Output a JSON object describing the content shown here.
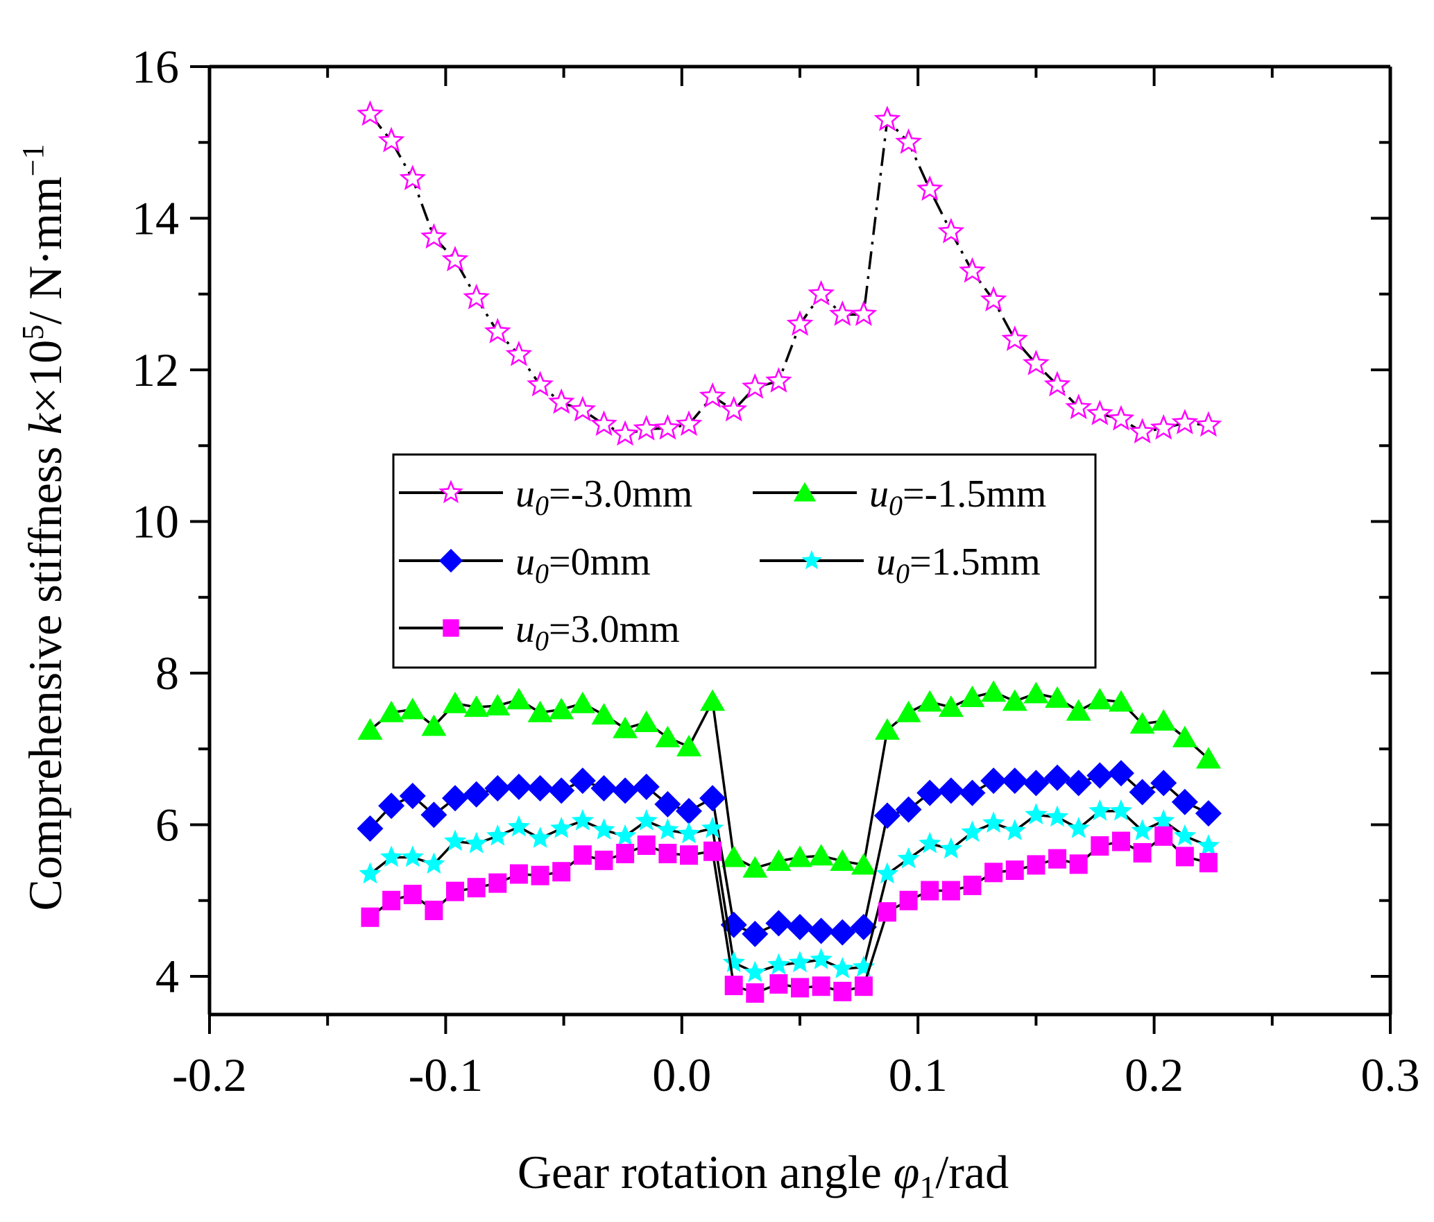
{
  "chart_data": {
    "type": "scatter",
    "title": "",
    "xlabel": "Gear rotation angle φ1/rad",
    "xlabel_parts": {
      "main": "Gear rotation angle ",
      "symbol": "φ",
      "sub": "1",
      "unit": "/rad"
    },
    "ylabel": "Comprehensive stiffness k×10^5/ N·mm^-1",
    "ylabel_parts": {
      "main": "Comprehensive stiffness ",
      "symbol": "k",
      "times": "×10",
      "sup": "5",
      "unit": "/ N·mm",
      "sup2": "−1"
    },
    "xlim": [
      -0.2,
      0.3
    ],
    "ylim": [
      3.5,
      16
    ],
    "xticks": [
      -0.2,
      -0.1,
      0.0,
      0.1,
      0.2,
      0.3
    ],
    "xtick_labels": [
      "-0.2",
      "-0.1",
      "0.0",
      "0.1",
      "0.2",
      "0.3"
    ],
    "yticks": [
      4,
      6,
      8,
      10,
      12,
      14,
      16
    ],
    "ytick_labels": [
      "4",
      "6",
      "8",
      "10",
      "12",
      "14",
      "16"
    ],
    "grid": false,
    "legend_position": "center-left",
    "x": [
      -0.132,
      -0.123,
      -0.114,
      -0.105,
      -0.096,
      -0.087,
      -0.078,
      -0.069,
      -0.06,
      -0.051,
      -0.042,
      -0.033,
      -0.024,
      -0.015,
      -0.006,
      0.003,
      0.013,
      0.022,
      0.031,
      0.041,
      0.05,
      0.059,
      0.068,
      0.077,
      0.087,
      0.096,
      0.105,
      0.114,
      0.123,
      0.132,
      0.141,
      0.15,
      0.159,
      0.168,
      0.177,
      0.186,
      0.195,
      0.204,
      0.213,
      0.223
    ],
    "series": [
      {
        "name": "u0=-3.0mm",
        "label_var": "u",
        "label_sub": "0",
        "label_rest": "=-3.0mm",
        "marker": "star-open",
        "color": "#ff00ff",
        "values": [
          15.37,
          15.02,
          14.52,
          13.75,
          13.45,
          12.95,
          12.5,
          12.2,
          11.8,
          11.57,
          11.47,
          11.28,
          11.15,
          11.22,
          11.23,
          11.28,
          11.65,
          11.47,
          11.77,
          11.85,
          12.6,
          13.0,
          12.73,
          12.73,
          15.3,
          15.0,
          14.38,
          13.82,
          13.3,
          12.92,
          12.4,
          12.08,
          11.8,
          11.5,
          11.42,
          11.35,
          11.18,
          11.23,
          11.3,
          11.27
        ]
      },
      {
        "name": "u0=-1.5mm",
        "label_var": "u",
        "label_sub": "0",
        "label_rest": "=-1.5mm",
        "marker": "triangle",
        "color": "#00ff00",
        "values": [
          7.25,
          7.48,
          7.52,
          7.3,
          7.6,
          7.55,
          7.57,
          7.65,
          7.48,
          7.52,
          7.6,
          7.45,
          7.27,
          7.35,
          7.15,
          7.03,
          7.63,
          5.57,
          5.43,
          5.52,
          5.57,
          5.59,
          5.52,
          5.47,
          7.25,
          7.48,
          7.62,
          7.55,
          7.68,
          7.75,
          7.63,
          7.73,
          7.67,
          7.5,
          7.65,
          7.62,
          7.33,
          7.37,
          7.15,
          6.87
        ]
      },
      {
        "name": "u0=0mm",
        "label_var": "u",
        "label_sub": "0",
        "label_rest": "=0mm",
        "marker": "diamond",
        "color": "#0000ff",
        "values": [
          5.95,
          6.25,
          6.38,
          6.13,
          6.35,
          6.4,
          6.48,
          6.5,
          6.48,
          6.45,
          6.58,
          6.48,
          6.45,
          6.5,
          6.27,
          6.18,
          6.35,
          4.68,
          4.56,
          4.7,
          4.65,
          4.6,
          4.58,
          4.65,
          6.12,
          6.2,
          6.42,
          6.45,
          6.42,
          6.58,
          6.58,
          6.55,
          6.62,
          6.55,
          6.65,
          6.68,
          6.43,
          6.55,
          6.3,
          6.15
        ]
      },
      {
        "name": "u0=1.5mm",
        "label_var": "u",
        "label_sub": "0",
        "label_rest": "=1.5mm",
        "marker": "star-filled",
        "color": "#00ffff",
        "values": [
          5.35,
          5.57,
          5.57,
          5.48,
          5.78,
          5.75,
          5.85,
          5.97,
          5.82,
          5.95,
          6.05,
          5.93,
          5.85,
          6.05,
          5.93,
          5.88,
          5.95,
          4.18,
          4.05,
          4.15,
          4.18,
          4.22,
          4.1,
          4.12,
          5.35,
          5.55,
          5.75,
          5.68,
          5.9,
          6.02,
          5.92,
          6.13,
          6.1,
          5.95,
          6.18,
          6.18,
          5.92,
          6.05,
          5.85,
          5.72
        ]
      },
      {
        "name": "u0=3.0mm",
        "label_var": "u",
        "label_sub": "0",
        "label_rest": "=3.0mm",
        "marker": "square",
        "color": "#ff00ff",
        "values": [
          4.78,
          5.0,
          5.08,
          4.87,
          5.12,
          5.17,
          5.23,
          5.35,
          5.33,
          5.38,
          5.6,
          5.53,
          5.62,
          5.73,
          5.62,
          5.6,
          5.65,
          3.88,
          3.78,
          3.9,
          3.85,
          3.87,
          3.8,
          3.87,
          4.85,
          5.0,
          5.13,
          5.13,
          5.2,
          5.37,
          5.4,
          5.47,
          5.55,
          5.48,
          5.72,
          5.78,
          5.63,
          5.85,
          5.58,
          5.5
        ]
      }
    ]
  }
}
